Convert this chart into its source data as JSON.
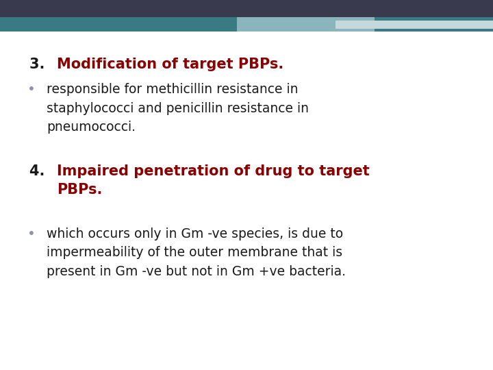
{
  "background_color": "#ffffff",
  "header_dark_color": "#3a3a4e",
  "header_teal_color": "#3a7a82",
  "header_light_teal": "#8ab5bc",
  "header_pale": "#c5d8dc",
  "red_color": "#8b0000",
  "black_color": "#1a1a1a",
  "bullet_color": "#9090b0",
  "heading3_number": "3. ",
  "heading3_bold": "Modification of target PBPs.",
  "bullet1_text": "responsible for methicillin resistance in\nstaphylococci and penicillin resistance in\npneumococci.",
  "heading4_number": "4. ",
  "heading4_bold": "Impaired penetration of drug to target\nPBPs.",
  "bullet2_text": "which occurs only in Gm -ve species, is due to\nimpermeability of the outer membrane that is\npresent in Gm -ve but not in Gm +ve bacteria.",
  "font_size_heading": 15,
  "font_size_body": 13.5,
  "figwidth": 7.2,
  "figheight": 5.4,
  "dpi": 100
}
